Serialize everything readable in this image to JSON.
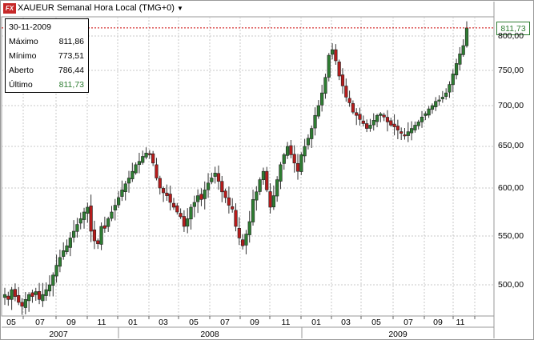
{
  "header": {
    "logo_text": "FX",
    "title": "XAUEUR Semanal Hora Local (TMG+0)",
    "dropdown_icon": "triangle-down-icon"
  },
  "info": {
    "date": "30-11-2009",
    "rows": [
      {
        "label": "Máximo",
        "value": "811,86"
      },
      {
        "label": "Mínimo",
        "value": "773,51"
      },
      {
        "label": "Aberto",
        "value": "786,44"
      },
      {
        "label": "Último",
        "value": "811,73"
      }
    ]
  },
  "last_price_label": "811,73",
  "colors": {
    "up": "#2e7d32",
    "down": "#b71c1c",
    "last_line": "#cc0000",
    "grid": "#c8c8c8"
  },
  "chart_data": {
    "type": "candlestick",
    "symbol": "XAUEUR",
    "y_ticks": [
      "500,00",
      "550,00",
      "600,00",
      "650,00",
      "700,00",
      "750,00",
      "800,00"
    ],
    "x_month_ticks": [
      {
        "label": "05",
        "date": "2007-05"
      },
      {
        "label": "07",
        "date": "2007-07"
      },
      {
        "label": "09",
        "date": "2007-09"
      },
      {
        "label": "11",
        "date": "2007-11"
      },
      {
        "label": "01",
        "date": "2008-01"
      },
      {
        "label": "03",
        "date": "2008-03"
      },
      {
        "label": "05",
        "date": "2008-05"
      },
      {
        "label": "07",
        "date": "2008-07"
      },
      {
        "label": "09",
        "date": "2008-09"
      },
      {
        "label": "11",
        "date": "2008-11"
      },
      {
        "label": "01",
        "date": "2009-01"
      },
      {
        "label": "03",
        "date": "2009-03"
      },
      {
        "label": "05",
        "date": "2009-05"
      },
      {
        "label": "07",
        "date": "2009-07"
      },
      {
        "label": "09",
        "date": "2009-09"
      },
      {
        "label": "11",
        "date": "2009-11"
      }
    ],
    "x_year_labels": [
      "2007",
      "2008",
      "2009"
    ],
    "last_price": 811.73,
    "closes": [
      490,
      485,
      495,
      488,
      482,
      478,
      485,
      490,
      488,
      493,
      485,
      490,
      495,
      500,
      510,
      520,
      528,
      535,
      540,
      548,
      555,
      562,
      568,
      575,
      580,
      555,
      545,
      542,
      560,
      558,
      568,
      575,
      582,
      590,
      598,
      605,
      612,
      620,
      628,
      632,
      638,
      642,
      640,
      630,
      612,
      600,
      595,
      592,
      585,
      580,
      575,
      570,
      560,
      568,
      580,
      585,
      592,
      588,
      598,
      606,
      612,
      618,
      608,
      596,
      590,
      582,
      578,
      560,
      548,
      540,
      552,
      565,
      588,
      596,
      610,
      620,
      598,
      580,
      592,
      610,
      628,
      640,
      650,
      640,
      630,
      620,
      640,
      650,
      660,
      672,
      688,
      700,
      718,
      740,
      772,
      780,
      764,
      742,
      728,
      712,
      704,
      692,
      688,
      683,
      678,
      672,
      676,
      682,
      688,
      690,
      686,
      680,
      676,
      674,
      670,
      666,
      664,
      668,
      672,
      676,
      680,
      686,
      690,
      696,
      700,
      706,
      708,
      712,
      718,
      730,
      745,
      760,
      774,
      786,
      811.73
    ]
  }
}
